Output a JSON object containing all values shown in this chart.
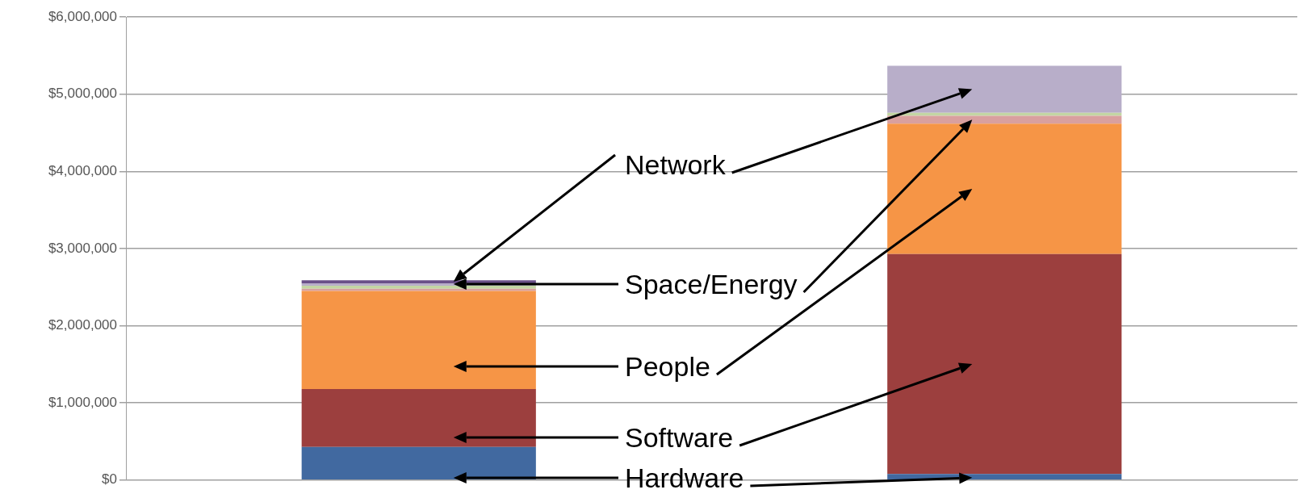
{
  "chart_data": {
    "type": "bar",
    "stacked": true,
    "categories": [
      null,
      null
    ],
    "series": [
      {
        "color": "#4169a0",
        "values": [
          430000,
          80000
        ]
      },
      {
        "color": "#9c3f3e",
        "values": [
          750000,
          2850000
        ]
      },
      {
        "color": "#f69546",
        "values": [
          1270000,
          1690000
        ]
      },
      {
        "color": "#d9a09f",
        "values": [
          30000,
          100000
        ]
      },
      {
        "color": "#c3d6a3",
        "values": [
          40000,
          40000
        ]
      },
      {
        "color": "#b8aec9",
        "values": [
          30000,
          610000
        ]
      },
      {
        "color": "#6a5088",
        "values": [
          40000,
          0
        ]
      }
    ],
    "ylim": [
      0,
      6000000
    ],
    "yticks": [
      {
        "value": 0,
        "label": "$0"
      },
      {
        "value": 1000000,
        "label": "$1,000,000"
      },
      {
        "value": 2000000,
        "label": "$2,000,000"
      },
      {
        "value": 3000000,
        "label": "$3,000,000"
      },
      {
        "value": 4000000,
        "label": "$4,000,000"
      },
      {
        "value": 5000000,
        "label": "$5,000,000"
      },
      {
        "value": 6000000,
        "label": "$6,000,000"
      }
    ],
    "grid": "y",
    "legend": false,
    "annotations": [
      "Network",
      "Space/Energy",
      "People",
      "Software",
      "Hardware"
    ]
  }
}
